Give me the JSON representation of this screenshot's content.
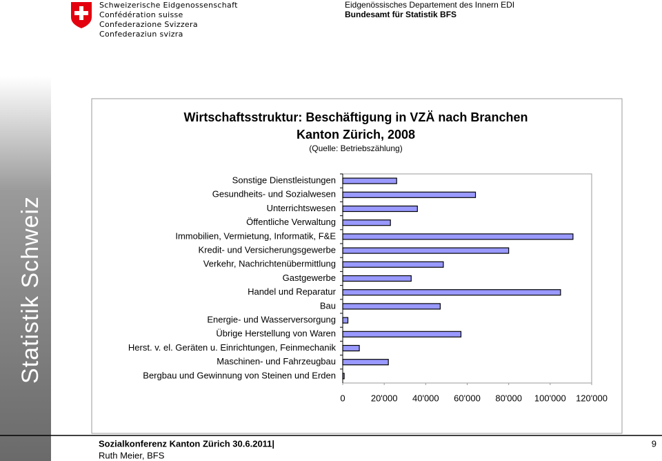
{
  "header": {
    "logo_lines": [
      "Schweizerische Eidgenossenschaft",
      "Confédération suisse",
      "Confederazione Svizzera",
      "Confederaziun svizra"
    ],
    "department": "Eidgenössisches Departement des Innern EDI",
    "office": "Bundesamt für Statistik BFS"
  },
  "sidebar": "Statistik Schweiz",
  "footer": {
    "event": "Sozialkonferenz Kanton Zürich 30.6.2011|",
    "author": "Ruth Meier, BFS",
    "page": "9"
  },
  "chart_data": {
    "type": "hbar",
    "title": "Wirtschaftsstruktur: Beschäftigung in VZÄ nach Branchen",
    "subtitle": "Kanton Zürich, 2008",
    "source": "(Quelle: Betriebszählung)",
    "categories": [
      "Sonstige Dienstleistungen",
      "Gesundheits- und Sozialwesen",
      "Unterrichtswesen",
      "Öffentliche Verwaltung",
      "Immobilien, Vermietung, Informatik, F&E",
      "Kredit- und Versicherungsgewerbe",
      "Verkehr, Nachrichtenübermittlung",
      "Gastgewerbe",
      "Handel und Reparatur",
      "Bau",
      "Energie- und Wasserversorgung",
      "Übrige Herstellung von Waren",
      "Herst. v. el. Geräten u. Einrichtungen, Feinmechanik",
      "Maschinen- und Fahrzeugbau",
      "Bergbau und Gewinnung von Steinen und Erden"
    ],
    "values": [
      26000,
      64000,
      36000,
      23000,
      111000,
      80000,
      48500,
      33000,
      105000,
      47000,
      2500,
      57000,
      8000,
      22000,
      700
    ],
    "color": "#9999ff",
    "xlim": [
      0,
      120000
    ],
    "xticks": [
      0,
      {
        "value": 20000,
        "label": "20'000"
      },
      {
        "value": 40000,
        "label": "40'000"
      },
      {
        "value": 60000,
        "label": "60'000"
      },
      {
        "value": 80000,
        "label": "80'000"
      },
      {
        "value": 100000,
        "label": "100'000"
      },
      {
        "value": 120000,
        "label": "120'000"
      }
    ],
    "grid": false
  }
}
